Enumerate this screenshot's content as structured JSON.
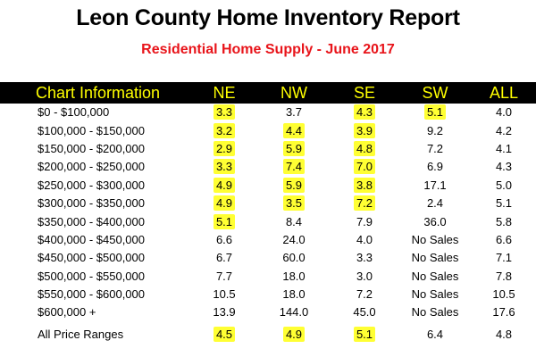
{
  "report": {
    "title": "Leon County Home Inventory Report",
    "subtitle": "Residential Home Supply - June 2017"
  },
  "chart_data": {
    "type": "table",
    "columns": [
      "Chart Information",
      "NE",
      "NW",
      "SE",
      "SW",
      "ALL"
    ],
    "rows": [
      {
        "label": "$0 - $100,000",
        "values": [
          "3.3",
          "3.7",
          "4.3",
          "5.1",
          "4.0"
        ],
        "highlight": [
          true,
          false,
          true,
          true,
          false
        ]
      },
      {
        "label": "$100,000 - $150,000",
        "values": [
          "3.2",
          "4.4",
          "3.9",
          "9.2",
          "4.2"
        ],
        "highlight": [
          true,
          true,
          true,
          false,
          false
        ]
      },
      {
        "label": "$150,000 - $200,000",
        "values": [
          "2.9",
          "5.9",
          "4.8",
          "7.2",
          "4.1"
        ],
        "highlight": [
          true,
          true,
          true,
          false,
          false
        ]
      },
      {
        "label": "$200,000 - $250,000",
        "values": [
          "3.3",
          "7.4",
          "7.0",
          "6.9",
          "4.3"
        ],
        "highlight": [
          true,
          true,
          true,
          false,
          false
        ]
      },
      {
        "label": "$250,000 - $300,000",
        "values": [
          "4.9",
          "5.9",
          "3.8",
          "17.1",
          "5.0"
        ],
        "highlight": [
          true,
          true,
          true,
          false,
          false
        ]
      },
      {
        "label": "$300,000 - $350,000",
        "values": [
          "4.9",
          "3.5",
          "7.2",
          "2.4",
          "5.1"
        ],
        "highlight": [
          true,
          true,
          true,
          false,
          false
        ]
      },
      {
        "label": "$350,000 - $400,000",
        "values": [
          "5.1",
          "8.4",
          "7.9",
          "36.0",
          "5.8"
        ],
        "highlight": [
          true,
          false,
          false,
          false,
          false
        ]
      },
      {
        "label": "$400,000 - $450,000",
        "values": [
          "6.6",
          "24.0",
          "4.0",
          "No Sales",
          "6.6"
        ],
        "highlight": [
          false,
          false,
          false,
          false,
          false
        ]
      },
      {
        "label": "$450,000 - $500,000",
        "values": [
          "6.7",
          "60.0",
          "3.3",
          "No Sales",
          "7.1"
        ],
        "highlight": [
          false,
          false,
          false,
          false,
          false
        ]
      },
      {
        "label": "$500,000 - $550,000",
        "values": [
          "7.7",
          "18.0",
          "3.0",
          "No Sales",
          "7.8"
        ],
        "highlight": [
          false,
          false,
          false,
          false,
          false
        ]
      },
      {
        "label": "$550,000 - $600,000",
        "values": [
          "10.5",
          "18.0",
          "7.2",
          "No Sales",
          "10.5"
        ],
        "highlight": [
          false,
          false,
          false,
          false,
          false
        ]
      },
      {
        "label": "$600,000 +",
        "values": [
          "13.9",
          "144.0",
          "45.0",
          "No Sales",
          "17.6"
        ],
        "highlight": [
          false,
          false,
          false,
          false,
          false
        ]
      },
      {
        "label": "All Price Ranges",
        "values": [
          "4.5",
          "4.9",
          "5.1",
          "6.4",
          "4.8"
        ],
        "highlight": [
          true,
          true,
          true,
          false,
          false
        ]
      }
    ],
    "colors": {
      "header_background": "#000000",
      "header_text": "#ffff00",
      "subtitle": "#e8141a",
      "highlight": "#ffff33"
    }
  }
}
